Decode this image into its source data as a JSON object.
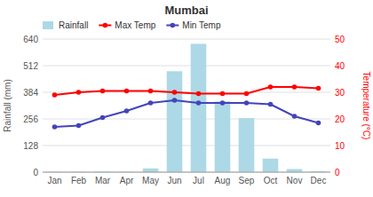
{
  "chart_data": {
    "type": "bar",
    "title": "Mumbai",
    "categories": [
      "Jan",
      "Feb",
      "Mar",
      "Apr",
      "May",
      "Jun",
      "Jul",
      "Aug",
      "Sep",
      "Oct",
      "Nov",
      "Dec"
    ],
    "series": [
      {
        "name": "Rainfall",
        "type": "bar",
        "color": "#add8e6",
        "values": [
          2,
          2,
          3,
          2,
          18,
          485,
          617,
          340,
          260,
          65,
          15,
          5
        ]
      },
      {
        "name": "Max Temp",
        "type": "line",
        "color": "#ff0000",
        "marker": "circle",
        "axis": "y2",
        "values": [
          29,
          30,
          30.5,
          30.5,
          30.5,
          30,
          29.5,
          29.5,
          29.5,
          32,
          32,
          31.5
        ]
      },
      {
        "name": "Min Temp",
        "type": "line",
        "color": "#4444bb",
        "marker": "circle",
        "axis": "y2",
        "values": [
          17,
          17.5,
          20.5,
          23,
          26,
          27,
          26,
          26,
          26,
          25.5,
          21,
          18.5
        ]
      }
    ],
    "ylabel": "Rainfall (mm)",
    "y2label": "Temperature (°C)",
    "ylim": [
      0,
      640
    ],
    "yticks": [
      0,
      128,
      256,
      384,
      512,
      640
    ],
    "y2lim": [
      0,
      50
    ],
    "y2ticks": [
      0,
      10,
      20,
      30,
      40,
      50
    ],
    "grid": true,
    "legend": "top-left"
  }
}
